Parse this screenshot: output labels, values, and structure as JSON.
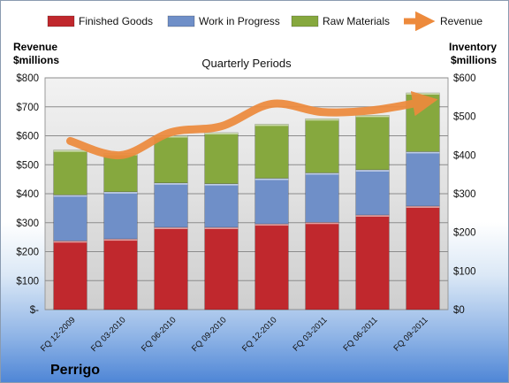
{
  "chart_data": {
    "type": "bar",
    "stacked": true,
    "title": "Quarterly Periods",
    "company": "Perrigo",
    "y_left_label": [
      "Revenue",
      "$millions"
    ],
    "y_right_label": [
      "Inventory",
      "$millions"
    ],
    "categories": [
      "FQ 12-2009",
      "FQ 03-2010",
      "FQ 06-2010",
      "FQ 09-2010",
      "FQ 12-2010",
      "FQ 03-2011",
      "FQ 06-2011",
      "FQ 09-2011"
    ],
    "y_left_ticks": [
      "$-",
      "$100",
      "$200",
      "$300",
      "$400",
      "$500",
      "$600",
      "$700",
      "$800"
    ],
    "y_right_ticks": [
      "$0",
      "$100",
      "$200",
      "$300",
      "$400",
      "$500",
      "$600"
    ],
    "ylim_left": [
      0,
      800
    ],
    "ylim_right": [
      0,
      600
    ],
    "grid": true,
    "legend_position": "top",
    "series": [
      {
        "name": "Finished Goods",
        "axis": "right",
        "color": "#c0282d",
        "values": [
          178,
          183,
          213,
          213,
          222,
          226,
          245,
          268
        ]
      },
      {
        "name": "Work in Progress",
        "axis": "right",
        "color": "#6f8fc8",
        "values": [
          119,
          122,
          115,
          113,
          118,
          128,
          117,
          141
        ]
      },
      {
        "name": "Raw Materials",
        "axis": "right",
        "color": "#86a83e",
        "values": [
          116,
          99,
          122,
          132,
          140,
          140,
          141,
          152
        ]
      },
      {
        "name": "Revenue",
        "axis": "left",
        "type": "line",
        "color": "#ed8a3c",
        "values": [
          582,
          533,
          612,
          633,
          710,
          682,
          688,
          717
        ]
      }
    ]
  }
}
